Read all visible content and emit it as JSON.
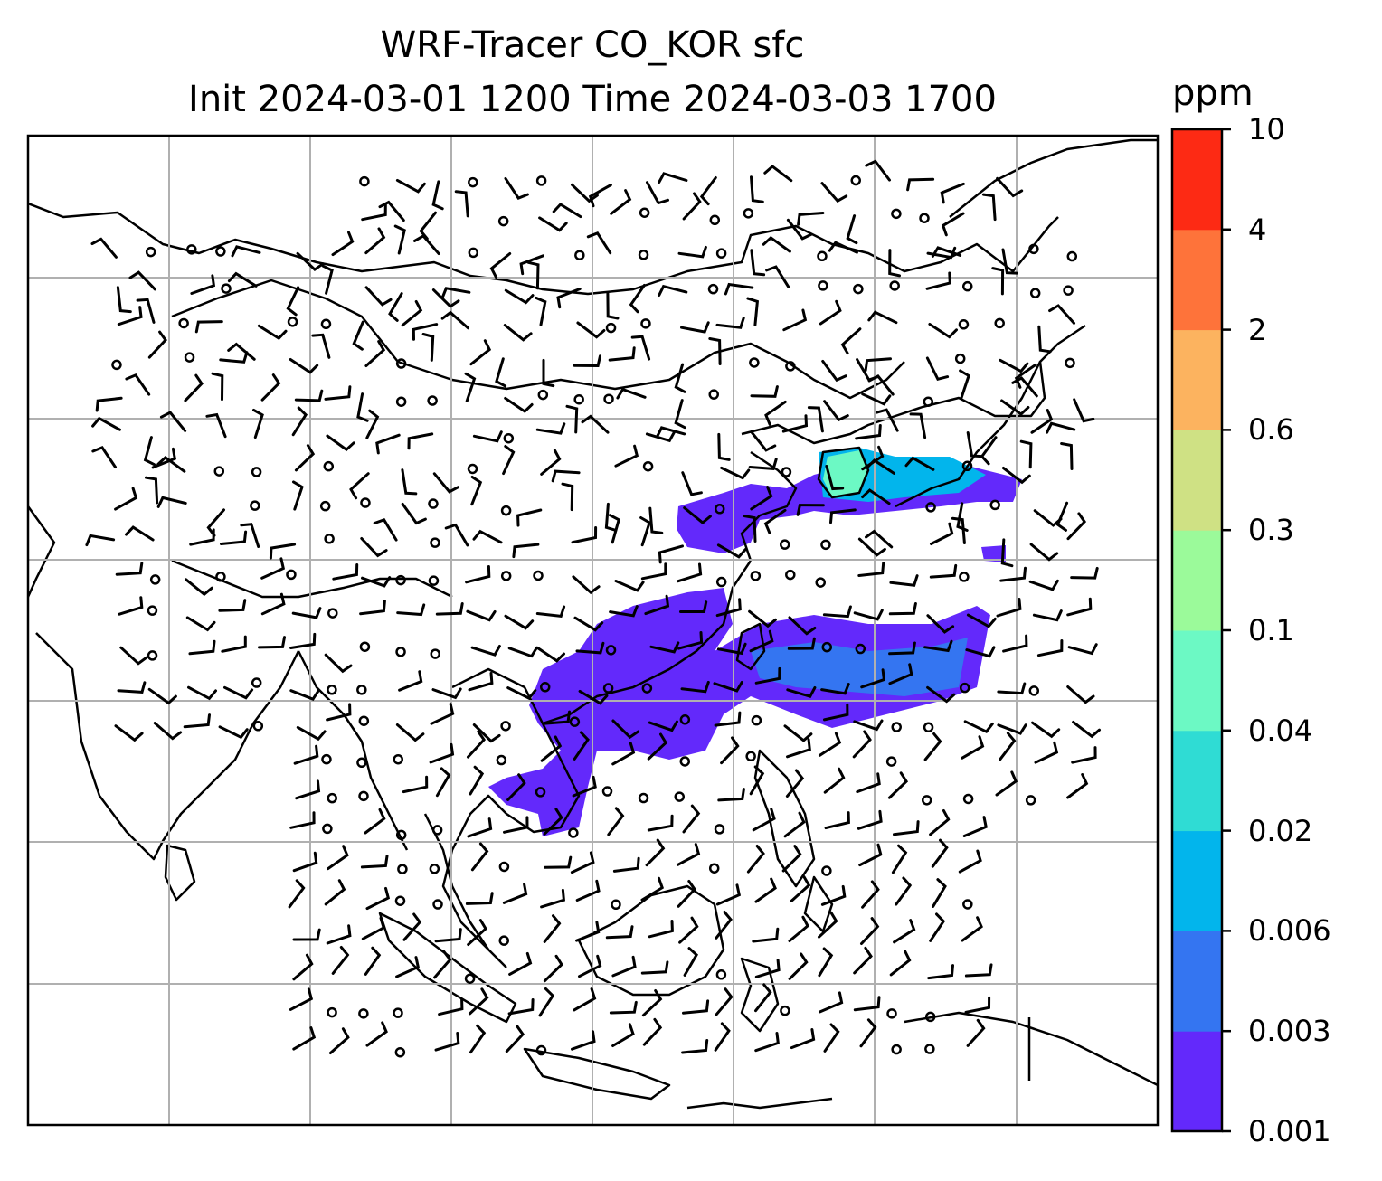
{
  "title": {
    "line1": "WRF-Tracer CO_KOR sfc",
    "line2": "Init 2024-03-01 1200 Time 2024-03-03 1700"
  },
  "colorbar": {
    "unit": "ppm",
    "levels": [
      "0.001",
      "0.003",
      "0.006",
      "0.02",
      "0.04",
      "0.1",
      "0.3",
      "0.6",
      "2",
      "4",
      "10"
    ],
    "colors": [
      "#6329fb",
      "#3475f1",
      "#02b5ec",
      "#2fdcd4",
      "#6cf9c4",
      "#9bfa9a",
      "#cfe184",
      "#fcb35f",
      "#fe733a",
      "#fd2a14"
    ]
  },
  "map": {
    "projection_grid": true,
    "gridline_color": "#b0b0b0",
    "field": "CO_KOR tracer surface concentration",
    "wind_barbs": true
  }
}
